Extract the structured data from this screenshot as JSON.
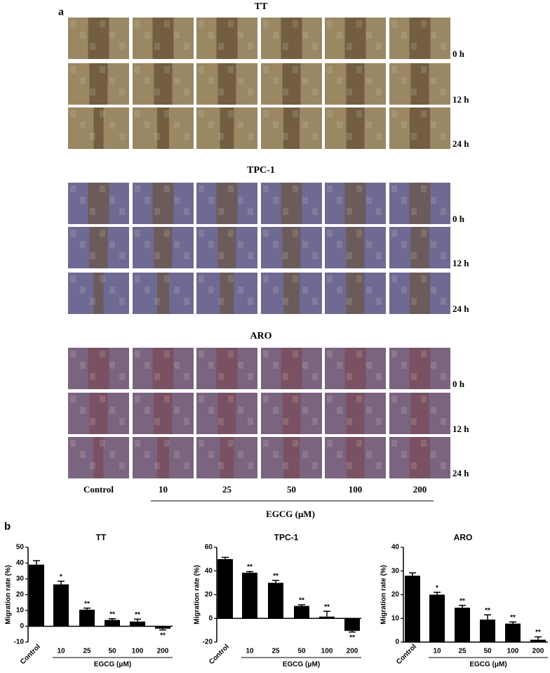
{
  "panel_a": {
    "label": "a",
    "groups": [
      {
        "title": "TT"
      },
      {
        "title": "TPC-1"
      },
      {
        "title": "ARO"
      }
    ],
    "times": [
      "0 h",
      "12 h",
      "24 h"
    ],
    "columns": [
      "Control",
      "10",
      "25",
      "50",
      "100",
      "200"
    ],
    "xlabel": "EGCG (μM)"
  },
  "panel_b": {
    "label": "b"
  },
  "chart_data": [
    {
      "type": "bar",
      "title": "TT",
      "ylabel": "Migration rate (%)",
      "xlabel": "EGCG (μM)",
      "categories": [
        "Control",
        "10",
        "25",
        "50",
        "100",
        "200"
      ],
      "values": [
        39,
        26.5,
        10.5,
        4,
        3,
        -1.5
      ],
      "errors": [
        2.5,
        2,
        1,
        0.8,
        1.5,
        0.8
      ],
      "significance": [
        null,
        "*",
        "**",
        "**",
        "**",
        "**"
      ],
      "ylim": [
        -10,
        50
      ],
      "yticks": [
        -10,
        0,
        10,
        20,
        30,
        40,
        50
      ],
      "color": "#000000"
    },
    {
      "type": "bar",
      "title": "TPC-1",
      "ylabel": "Migration rate (%)",
      "xlabel": "EGCG (μM)",
      "categories": [
        "Control",
        "10",
        "25",
        "50",
        "100",
        "200"
      ],
      "values": [
        50,
        38.5,
        30,
        10.5,
        1.5,
        -10.5
      ],
      "errors": [
        1.5,
        1,
        2,
        1,
        4.5,
        1
      ],
      "significance": [
        null,
        "**",
        "**",
        "**",
        "**",
        "**"
      ],
      "ylim": [
        -20,
        60
      ],
      "yticks": [
        -20,
        0,
        20,
        40,
        60
      ],
      "color": "#000000"
    },
    {
      "type": "bar",
      "title": "ARO",
      "ylabel": "Migration rate (%)",
      "xlabel": "EGCG (μM)",
      "categories": [
        "Control",
        "10",
        "25",
        "50",
        "100",
        "200"
      ],
      "values": [
        28,
        20,
        14.5,
        9.5,
        7.8,
        1
      ],
      "errors": [
        1.2,
        1,
        1,
        2,
        0.7,
        1.2
      ],
      "significance": [
        null,
        "*",
        "**",
        "**",
        "**",
        "**"
      ],
      "ylim": [
        0,
        40
      ],
      "yticks": [
        0,
        10,
        20,
        30,
        40
      ],
      "color": "#000000"
    }
  ]
}
